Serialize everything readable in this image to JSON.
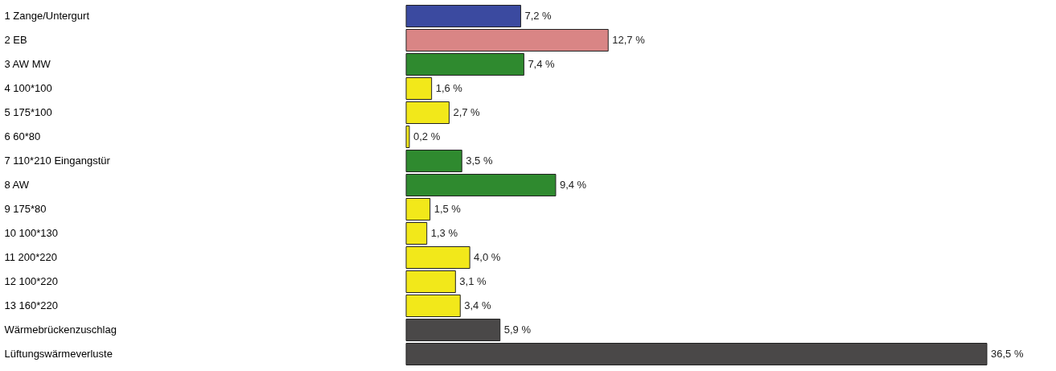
{
  "chart_data": {
    "type": "bar",
    "orientation": "horizontal",
    "categories": [
      "1 Zange/Untergurt",
      "2 EB",
      "3 AW MW",
      "4 100*100",
      "5 175*100",
      "6 60*80",
      "7 110*210 Eingangstür",
      "8 AW",
      "9 175*80",
      "10 100*130",
      "11 200*220",
      "12 100*220",
      "13 160*220",
      "Wärmebrückenzuschlag",
      "Lüftungswärmeverluste"
    ],
    "values": [
      7.2,
      12.7,
      7.4,
      1.6,
      2.7,
      0.2,
      3.5,
      9.4,
      1.5,
      1.3,
      4.0,
      3.1,
      3.4,
      5.9,
      36.5
    ],
    "colors": [
      "#3b4aa0",
      "#d98585",
      "#2f8a2f",
      "#f2e81a",
      "#f2e81a",
      "#f2e81a",
      "#2f8a2f",
      "#2f8a2f",
      "#f2e81a",
      "#f2e81a",
      "#f2e81a",
      "#f2e81a",
      "#f2e81a",
      "#4a4848",
      "#4a4848"
    ],
    "value_labels": [
      "7,2 %",
      "12,7 %",
      "7,4 %",
      "1,6 %",
      "2,7 %",
      "0,2 %",
      "3,5 %",
      "9,4 %",
      "1,5 %",
      "1,3 %",
      "4,0 %",
      "3,1 %",
      "3,4 %",
      "5,9 %",
      "36,5 %"
    ]
  }
}
